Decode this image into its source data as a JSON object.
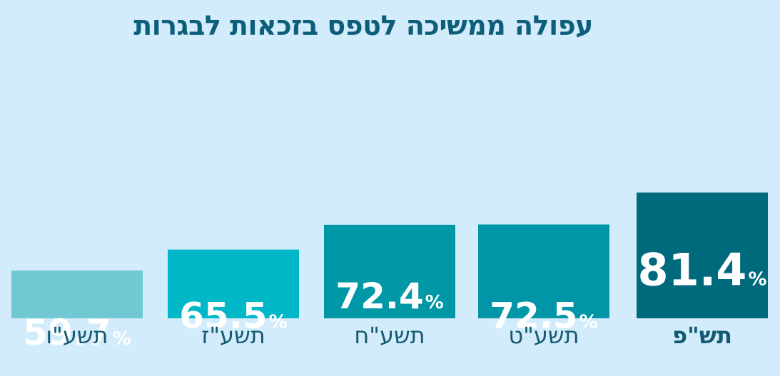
{
  "chart_data": {
    "type": "bar",
    "title": "עפולה ממשיכה לטפס בזכאות לבגרות",
    "xlabel": "",
    "ylabel": "",
    "ylim": [
      0,
      100
    ],
    "categories": [
      "תשע\"ו",
      "תשע\"ז",
      "תשע\"ח",
      "תשע\"ט",
      "תש\"פ"
    ],
    "values": [
      59.7,
      65.5,
      72.4,
      72.5,
      81.4
    ],
    "value_suffix": "%",
    "grid": false,
    "legend": "none",
    "colors": [
      "#70c8d2",
      "#00b8c7",
      "#0098a6",
      "#0096a7",
      "#006a7d"
    ],
    "emphasized_category": "תש\"פ"
  }
}
